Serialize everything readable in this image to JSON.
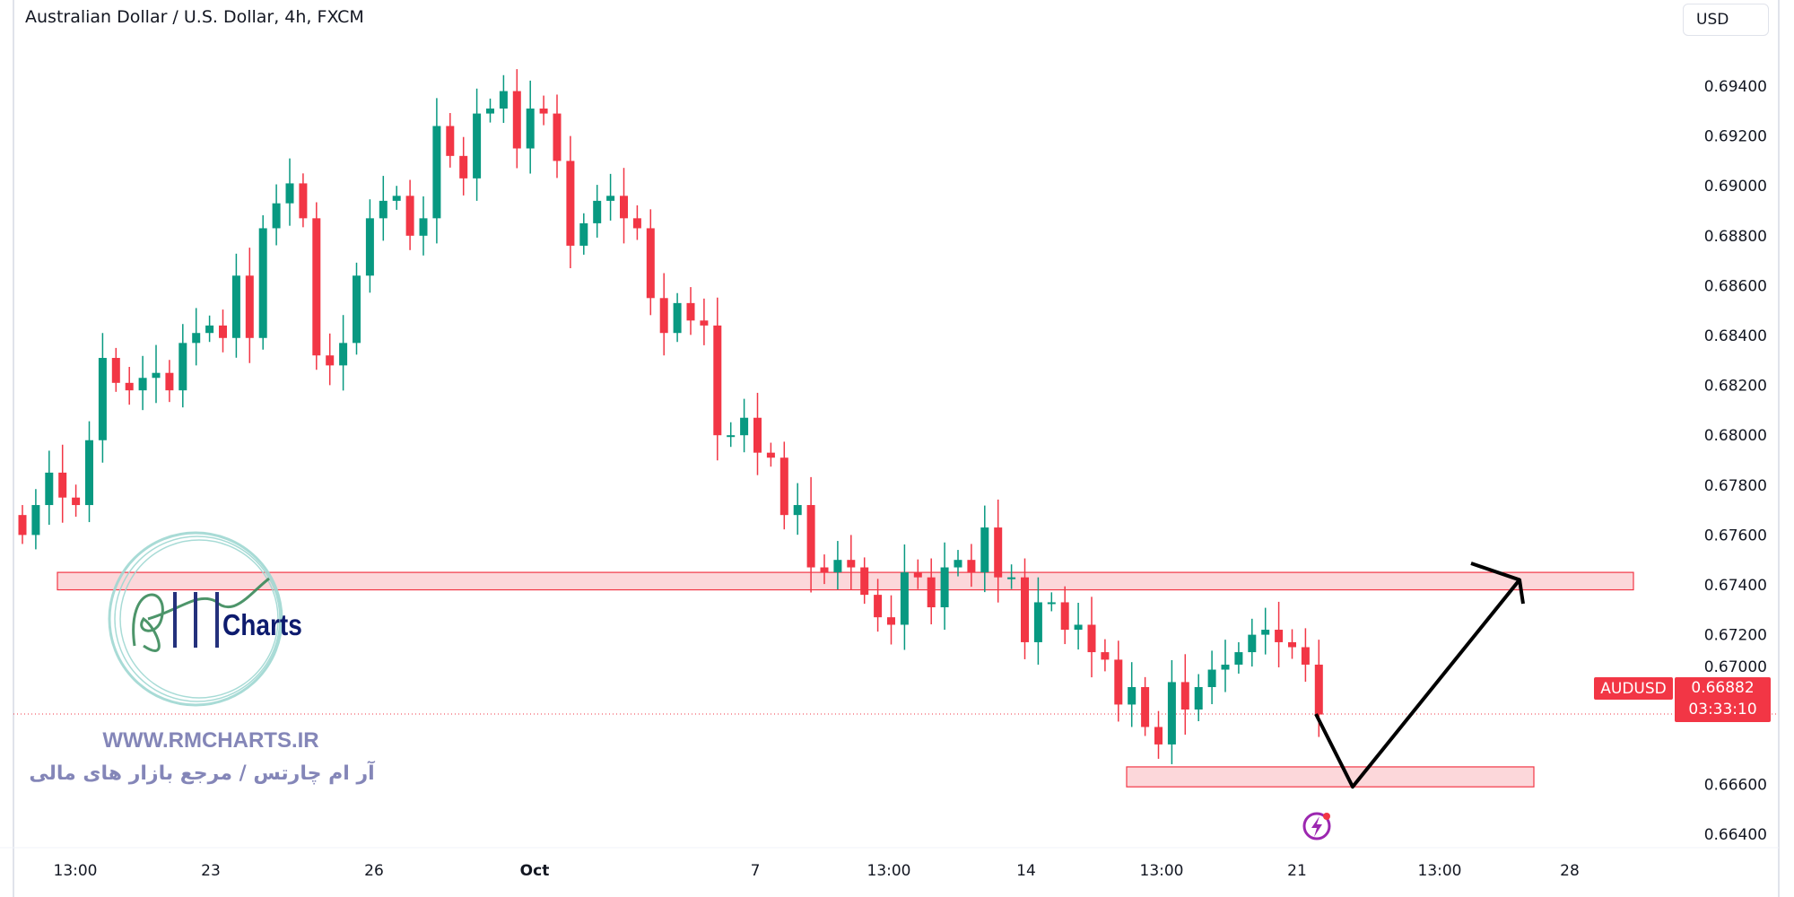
{
  "header": {
    "title": "Australian Dollar / U.S. Dollar, 4h, FXCM",
    "currency_button": "USD"
  },
  "price_tag": {
    "symbol": "AUDUSD",
    "price": "0.66882",
    "countdown": "03:33:10"
  },
  "watermark": {
    "logo_text": "Charts",
    "website": "WWW.RMCHARTS.IR",
    "tagline": "آر ام چارتس / مرجع بازار های مالی"
  },
  "icons": {
    "lightning": "lightning-icon"
  },
  "colors": {
    "up": "#089981",
    "down": "#f23645",
    "zone": "#f23645",
    "arrow": "#000000",
    "lightning": "#9c27b0"
  },
  "chart_data": {
    "type": "candlestick",
    "symbol": "AUDUSD",
    "timeframe": "4h",
    "ylim": [
      0.663,
      0.6955
    ],
    "y_ticks": [
      "0.69400",
      "0.69200",
      "0.69000",
      "0.68800",
      "0.68600",
      "0.68400",
      "0.68200",
      "0.68000",
      "0.67800",
      "0.67600",
      "0.67400",
      "0.67200",
      "0.67000",
      "0.66600",
      "0.66400"
    ],
    "x_ticks": [
      "13:00",
      "23",
      "26",
      "Oct",
      "7",
      "13:00",
      "14",
      "13:00",
      "21",
      "13:00",
      "28"
    ],
    "closes": [
      0.676,
      0.6772,
      0.6785,
      0.6775,
      0.6772,
      0.6798,
      0.6831,
      0.6821,
      0.6818,
      0.6823,
      0.6825,
      0.6818,
      0.6837,
      0.6841,
      0.6844,
      0.6839,
      0.6864,
      0.6839,
      0.6883,
      0.6893,
      0.6901,
      0.6887,
      0.6832,
      0.6828,
      0.6837,
      0.6864,
      0.6887,
      0.6894,
      0.6896,
      0.688,
      0.6887,
      0.6924,
      0.6912,
      0.6903,
      0.6929,
      0.6931,
      0.6938,
      0.6915,
      0.6931,
      0.6929,
      0.691,
      0.6876,
      0.6885,
      0.6894,
      0.6896,
      0.6887,
      0.6883,
      0.6855,
      0.6841,
      0.6853,
      0.6846,
      0.6844,
      0.68,
      0.68,
      0.6807,
      0.6793,
      0.6791,
      0.6768,
      0.6772,
      0.6747,
      0.6745,
      0.675,
      0.6747,
      0.6736,
      0.6727,
      0.6724,
      0.6745,
      0.6743,
      0.6731,
      0.6747,
      0.675,
      0.6745,
      0.6763,
      0.6743,
      0.6743,
      0.6717,
      0.6733,
      0.6733,
      0.6722,
      0.6724,
      0.6713,
      0.671,
      0.6692,
      0.6699,
      0.6683,
      0.6676,
      0.6701,
      0.669,
      0.6699,
      0.6706,
      0.6708,
      0.6713,
      0.672,
      0.6722,
      0.6717,
      0.6715,
      0.6708,
      0.6688
    ],
    "last_price": 0.66882,
    "zones": [
      {
        "top": 0.6745,
        "bottom": 0.6738
      },
      {
        "top": 0.6667,
        "bottom": 0.6659
      }
    ],
    "projection": [
      0.66882,
      0.6659,
      0.6742
    ]
  }
}
